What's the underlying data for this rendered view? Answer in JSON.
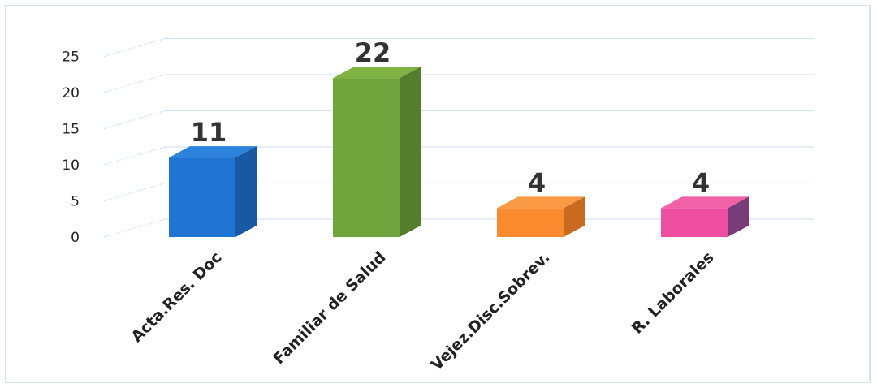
{
  "chart_data": {
    "type": "bar",
    "title": "",
    "xlabel": "",
    "ylabel": "",
    "categories": [
      "Acta.Res. Doc",
      "Familiar de Salud",
      "Vejez.Disc.Sobrev.",
      "R. Laborales"
    ],
    "values": [
      11,
      22,
      4,
      4
    ],
    "data_labels": [
      "11",
      "22",
      "4",
      "4"
    ],
    "ylim": [
      0,
      25
    ],
    "yticks": [
      0,
      5,
      10,
      15,
      20,
      25
    ],
    "grid": true,
    "legend": "none",
    "style": "3d-columns",
    "colors": [
      "#1f74d4",
      "#70a43c",
      "#f98a2e",
      "#ee4fa0"
    ],
    "side_colors": [
      "#1958a3",
      "#557d2c",
      "#c96a1f",
      "#7a3b79"
    ],
    "top_colors": [
      "#2d82dc",
      "#7fb343",
      "#fb9a45",
      "#f061a8"
    ]
  }
}
